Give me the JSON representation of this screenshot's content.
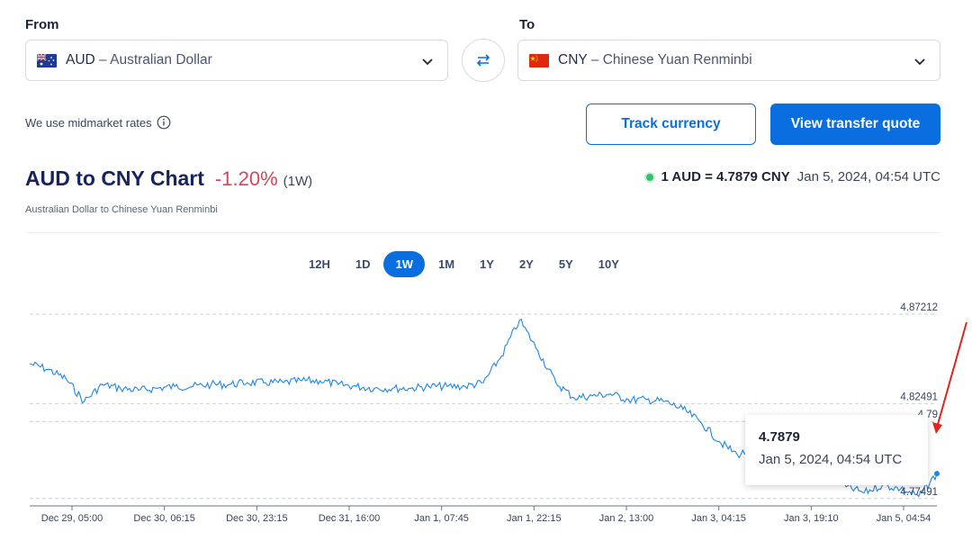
{
  "from": {
    "label": "From",
    "code": "AUD",
    "name": "Australian Dollar",
    "flag": "australia-flag"
  },
  "to": {
    "label": "To",
    "code": "CNY",
    "name": "Chinese Yuan Renminbi",
    "flag": "china-flag"
  },
  "midmarket_note": "We use midmarket rates",
  "buttons": {
    "track": "Track currency",
    "quote": "View transfer quote"
  },
  "header": {
    "title": "AUD to CNY Chart",
    "change": "-1.20%",
    "period": "(1W)",
    "subtitle": "Australian Dollar to Chinese Yuan Renminbi",
    "rate": "1 AUD = 4.7879 CNY",
    "rate_time": "Jan 5, 2024, 04:54 UTC"
  },
  "ranges": [
    "12H",
    "1D",
    "1W",
    "1M",
    "1Y",
    "2Y",
    "5Y",
    "10Y"
  ],
  "active_range": "1W",
  "tooltip": {
    "value": "4.7879",
    "time": "Jan 5, 2024, 04:54 UTC"
  },
  "colors": {
    "accent": "#0b6ee0",
    "line": "#1f86e6",
    "negative": "#d0485a",
    "live_dot": "#33c36b"
  },
  "chart_data": {
    "type": "line",
    "series": [
      {
        "x": [
          0,
          2,
          4,
          6,
          8,
          10,
          12,
          14,
          16,
          18,
          20,
          22,
          24,
          26,
          28,
          30,
          32,
          34,
          36,
          38,
          40,
          42,
          44,
          46,
          48,
          50,
          52,
          54,
          56,
          58,
          60,
          62,
          64,
          66,
          68,
          70,
          72,
          74,
          76,
          78,
          80,
          82,
          84,
          86,
          88,
          90,
          92,
          94,
          96,
          98,
          100
        ],
        "values": [
          4.846,
          4.843,
          4.838,
          4.826,
          4.835,
          4.833,
          4.832,
          4.833,
          4.834,
          4.834,
          4.835,
          4.835,
          4.836,
          4.836,
          4.836,
          4.837,
          4.837,
          4.835,
          4.834,
          4.833,
          4.833,
          4.833,
          4.834,
          4.834,
          4.834,
          4.836,
          4.85,
          4.869,
          4.853,
          4.836,
          4.828,
          4.829,
          4.83,
          4.827,
          4.827,
          4.826,
          4.822,
          4.815,
          4.805,
          4.798,
          4.801,
          4.807,
          4.804,
          4.8,
          4.793,
          4.781,
          4.778,
          4.782,
          4.78,
          4.776,
          4.788
        ]
      }
    ],
    "x_ticks": [
      "Dec 29, 05:00",
      "Dec 30, 06:15",
      "Dec 30, 23:15",
      "Dec 31, 16:00",
      "Jan 1, 07:45",
      "Jan 1, 22:15",
      "Jan 2, 13:00",
      "Jan 3, 04:15",
      "Jan 3, 19:10",
      "Jan 5, 04:54"
    ],
    "y_ticks": [
      "4.87212",
      "4.82491",
      "4.79",
      "4.77491"
    ],
    "grid": true
  }
}
